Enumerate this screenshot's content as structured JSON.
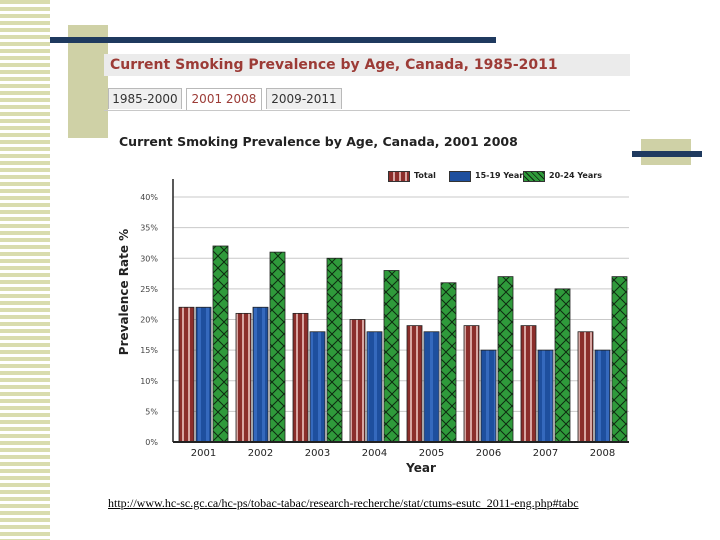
{
  "header": {
    "title": "Current Smoking Prevalence by Age, Canada, 1985-2011"
  },
  "tabs": [
    {
      "label": "1985-2000",
      "active": false
    },
    {
      "label": "2001  2008",
      "active": true
    },
    {
      "label": "2009-2011",
      "active": false
    }
  ],
  "legend": [
    {
      "label": "Total",
      "color": "#8b2e2b"
    },
    {
      "label": "15-19 Years",
      "color": "#1e4f9e"
    },
    {
      "label": "20-24 Years",
      "color": "#2f9a3b"
    }
  ],
  "chart_data": {
    "type": "bar",
    "title": "Current Smoking Prevalence by Age, Canada, 2001  2008",
    "xlabel": "Year",
    "ylabel": "Prevalence Rate %",
    "categories": [
      "2001",
      "2002",
      "2003",
      "2004",
      "2005",
      "2006",
      "2007",
      "2008"
    ],
    "series": [
      {
        "name": "Total",
        "values": [
          22,
          21,
          21,
          20,
          19,
          19,
          19,
          18
        ],
        "color": "#8b2e2b"
      },
      {
        "name": "15-19 Years",
        "values": [
          22,
          22,
          18,
          18,
          18,
          15,
          15,
          15
        ],
        "color": "#1e4f9e"
      },
      {
        "name": "20-24 Years",
        "values": [
          32,
          31,
          30,
          28,
          26,
          27,
          25,
          27
        ],
        "color": "#2f9a3b"
      }
    ],
    "ylim": [
      0,
      40
    ],
    "yticks": [
      "0%",
      "5%",
      "10%",
      "15%",
      "20%",
      "25%",
      "30%",
      "35%",
      "40%"
    ],
    "grid": true,
    "legend_position": "top-right"
  },
  "source": {
    "url": "http://www.hc-sc.gc.ca/hc-ps/tobac-tabac/research-recherche/stat/ctums-esutc_2011-eng.php#tabc"
  }
}
